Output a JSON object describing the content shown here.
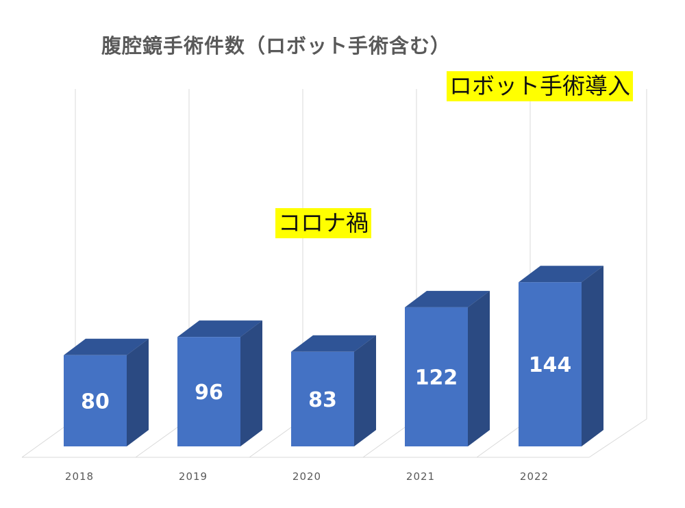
{
  "chart_data": {
    "type": "bar",
    "title": "腹腔鏡手術件数（ロボット手術含む）",
    "categories": [
      "2018",
      "2019",
      "2020",
      "2021",
      "2022"
    ],
    "values": [
      80,
      96,
      83,
      122,
      144
    ],
    "data_labels": [
      "80",
      "96",
      "83",
      "122",
      "144"
    ],
    "annotations": [
      "コロナ禍",
      "ロボット手術導入"
    ],
    "style": "3d-column",
    "grid": true,
    "colors": {
      "bar_front": "#4472C4",
      "bar_top": "#2F5496",
      "bar_side": "#2B4A82",
      "annotation_bg": "#FFFF00",
      "title": "#595959"
    }
  }
}
